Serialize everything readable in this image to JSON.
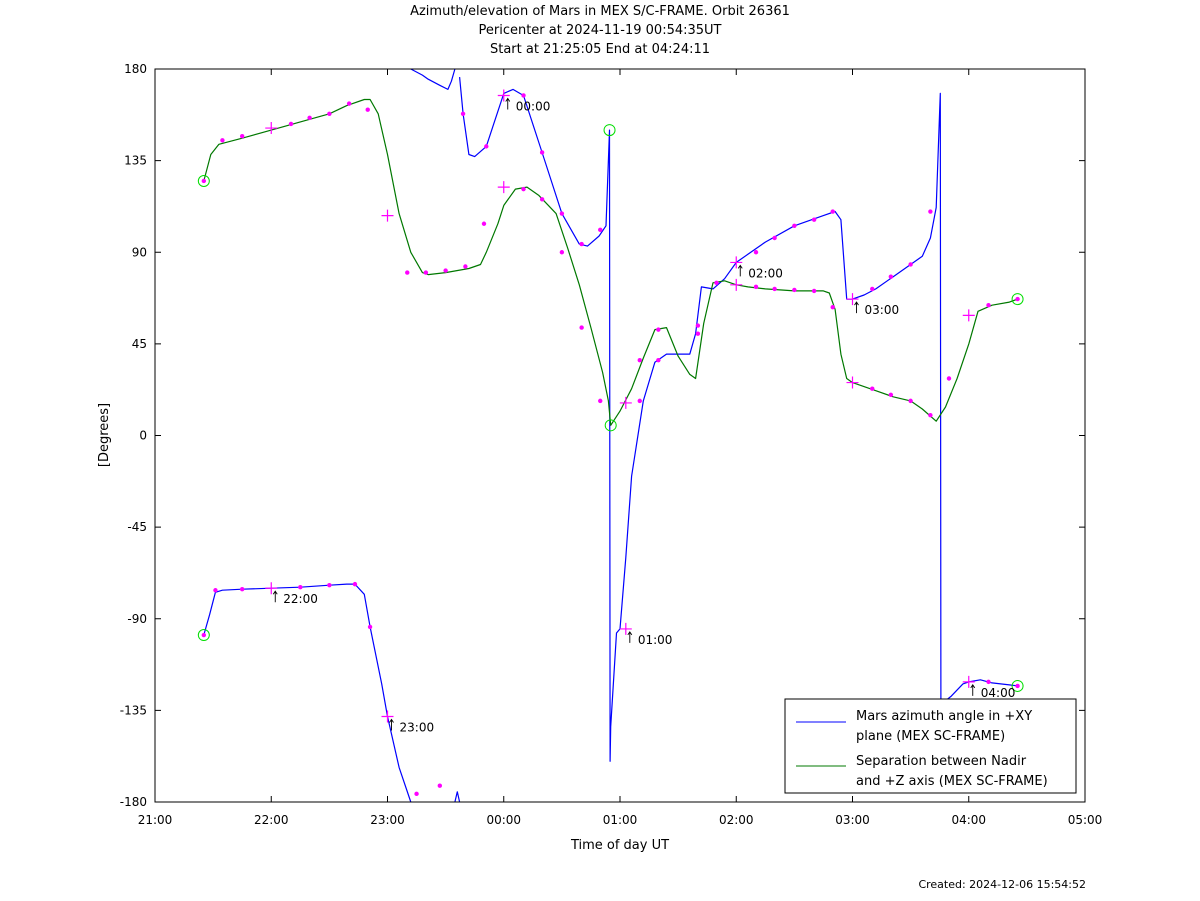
{
  "page": {
    "title_lines": [
      "Azimuth/elevation of Mars in MEX S/C-FRAME.  Orbit 26361",
      "Pericenter at 2024-11-19 00:54:35UT",
      "Start at 21:25:05 End at 04:24:11"
    ],
    "created": "Created: 2024-12-06 15:54:52"
  },
  "chart_data": {
    "type": "line",
    "xlabel": "Time of day UT",
    "ylabel": "[Degrees]",
    "xlim": [
      0,
      8
    ],
    "ylim": [
      -180,
      180
    ],
    "x_ticks": [
      "21:00",
      "22:00",
      "23:00",
      "00:00",
      "01:00",
      "02:00",
      "03:00",
      "04:00",
      "05:00"
    ],
    "y_ticks": [
      180,
      135,
      90,
      45,
      0,
      -45,
      -90,
      -135,
      -180
    ],
    "grid": false,
    "legend_position": "bottom-right",
    "series": [
      {
        "name": "Mars azimuth angle in +XY plane (MEX SC-FRAME)",
        "legend_lines": [
          "Mars azimuth angle in +XY",
          "plane (MEX SC-FRAME)"
        ],
        "color": "#0000ff",
        "segments": [
          [
            [
              0.42,
              -98
            ],
            [
              0.47,
              -88
            ],
            [
              0.52,
              -77
            ],
            [
              0.58,
              -76
            ],
            [
              0.75,
              -75.5
            ],
            [
              1.0,
              -75
            ],
            [
              1.25,
              -74.5
            ],
            [
              1.5,
              -73.5
            ],
            [
              1.65,
              -73
            ],
            [
              1.72,
              -73
            ],
            [
              1.8,
              -78
            ],
            [
              1.85,
              -94
            ],
            [
              1.95,
              -122
            ],
            [
              2.0,
              -138
            ],
            [
              2.1,
              -163
            ],
            [
              2.2,
              -180
            ]
          ],
          [
            [
              2.2,
              180
            ],
            [
              2.3,
              177
            ],
            [
              2.35,
              175
            ],
            [
              2.45,
              172
            ],
            [
              2.52,
              170
            ],
            [
              2.55,
              174
            ],
            [
              2.58,
              180
            ]
          ],
          [
            [
              2.58,
              -180
            ],
            [
              2.6,
              -175
            ],
            [
              2.62,
              -180
            ]
          ],
          [
            [
              2.62,
              176
            ],
            [
              2.65,
              158
            ],
            [
              2.7,
              138
            ],
            [
              2.75,
              137
            ],
            [
              2.85,
              142
            ],
            [
              3.0,
              168
            ],
            [
              3.08,
              170
            ],
            [
              3.17,
              167
            ],
            [
              3.33,
              139
            ],
            [
              3.5,
              109
            ],
            [
              3.65,
              94
            ],
            [
              3.72,
              93
            ],
            [
              3.82,
              98
            ],
            [
              3.88,
              103
            ],
            [
              3.91,
              150
            ],
            [
              3.915,
              -160
            ],
            [
              3.92,
              -143
            ],
            [
              3.97,
              -97
            ],
            [
              4.0,
              -95
            ],
            [
              4.05,
              -60
            ],
            [
              4.1,
              -20
            ],
            [
              4.2,
              17
            ],
            [
              4.3,
              36
            ],
            [
              4.4,
              40
            ],
            [
              4.5,
              40
            ],
            [
              4.6,
              40
            ],
            [
              4.65,
              50
            ],
            [
              4.7,
              73
            ],
            [
              4.8,
              72
            ],
            [
              4.9,
              77
            ],
            [
              5.0,
              85
            ],
            [
              5.1,
              89
            ],
            [
              5.25,
              95
            ],
            [
              5.5,
              103
            ],
            [
              5.75,
              108
            ],
            [
              5.85,
              110
            ],
            [
              5.9,
              106
            ],
            [
              5.95,
              67
            ],
            [
              6.0,
              67
            ],
            [
              6.1,
              69
            ],
            [
              6.2,
              72
            ],
            [
              6.35,
              78
            ],
            [
              6.5,
              84
            ],
            [
              6.6,
              88
            ],
            [
              6.67,
              97
            ],
            [
              6.72,
              112
            ],
            [
              6.75,
              160
            ],
            [
              6.755,
              168
            ],
            [
              6.76,
              -132
            ]
          ],
          [
            [
              6.76,
              -132
            ],
            [
              6.85,
              -128
            ],
            [
              6.95,
              -122
            ],
            [
              7.0,
              -121
            ],
            [
              7.1,
              -120
            ],
            [
              7.2,
              -121.5
            ],
            [
              7.35,
              -122.5
            ],
            [
              7.42,
              -123
            ]
          ]
        ]
      },
      {
        "name": "Separation between Nadir and +Z axis (MEX SC-FRAME)",
        "legend_lines": [
          "Separation between Nadir",
          "and +Z axis (MEX SC-FRAME)"
        ],
        "color": "#007800",
        "segments": [
          [
            [
              0.42,
              125
            ],
            [
              0.48,
              138
            ],
            [
              0.55,
              143
            ],
            [
              0.75,
              146
            ],
            [
              1.0,
              150
            ],
            [
              1.25,
              154
            ],
            [
              1.5,
              158
            ],
            [
              1.65,
              162
            ],
            [
              1.8,
              165
            ],
            [
              1.85,
              165
            ],
            [
              1.92,
              158
            ],
            [
              2.0,
              138
            ],
            [
              2.1,
              109
            ],
            [
              2.2,
              90
            ],
            [
              2.3,
              80
            ],
            [
              2.35,
              79
            ],
            [
              2.5,
              80
            ],
            [
              2.7,
              82
            ],
            [
              2.8,
              84
            ],
            [
              2.85,
              90
            ],
            [
              2.95,
              104
            ],
            [
              3.0,
              113
            ],
            [
              3.1,
              121
            ],
            [
              3.2,
              122
            ],
            [
              3.3,
              118
            ],
            [
              3.45,
              109
            ],
            [
              3.55,
              92
            ],
            [
              3.65,
              74
            ],
            [
              3.75,
              53
            ],
            [
              3.85,
              31
            ],
            [
              3.9,
              17
            ],
            [
              3.92,
              5
            ],
            [
              4.0,
              12
            ],
            [
              4.1,
              23
            ],
            [
              4.2,
              38
            ],
            [
              4.3,
              52
            ],
            [
              4.4,
              53
            ],
            [
              4.5,
              39
            ],
            [
              4.6,
              30
            ],
            [
              4.65,
              28
            ],
            [
              4.72,
              55
            ],
            [
              4.8,
              75
            ],
            [
              4.9,
              76
            ],
            [
              5.0,
              74
            ],
            [
              5.1,
              73
            ],
            [
              5.25,
              72
            ],
            [
              5.5,
              71
            ],
            [
              5.75,
              71
            ],
            [
              5.8,
              70
            ],
            [
              5.85,
              62
            ],
            [
              5.9,
              40
            ],
            [
              5.95,
              28
            ],
            [
              6.0,
              26
            ],
            [
              6.2,
              22
            ],
            [
              6.35,
              19
            ],
            [
              6.5,
              17
            ],
            [
              6.6,
              13
            ],
            [
              6.72,
              7
            ],
            [
              6.8,
              14
            ],
            [
              6.9,
              28
            ],
            [
              7.0,
              45
            ],
            [
              7.08,
              61
            ],
            [
              7.2,
              64
            ],
            [
              7.35,
              65.5
            ],
            [
              7.42,
              67
            ]
          ]
        ]
      }
    ],
    "markers": {
      "color": "#ff00ff",
      "circle_color": "#00dd00",
      "dots": [
        [
          0.42,
          -98
        ],
        [
          0.52,
          -76
        ],
        [
          0.75,
          -75.5
        ],
        [
          1.25,
          -74.5
        ],
        [
          1.5,
          -73.5
        ],
        [
          1.72,
          -73
        ],
        [
          1.85,
          -94
        ],
        [
          2.25,
          -176
        ],
        [
          2.45,
          -172
        ],
        [
          2.65,
          158
        ],
        [
          2.85,
          142
        ],
        [
          3.17,
          167
        ],
        [
          3.33,
          139
        ],
        [
          3.5,
          109
        ],
        [
          3.67,
          94
        ],
        [
          3.83,
          101
        ],
        [
          4.17,
          17
        ],
        [
          4.33,
          37
        ],
        [
          4.67,
          50
        ],
        [
          5.17,
          90
        ],
        [
          5.33,
          97
        ],
        [
          5.5,
          103
        ],
        [
          5.67,
          106
        ],
        [
          5.83,
          110
        ],
        [
          6.17,
          72
        ],
        [
          6.33,
          78
        ],
        [
          6.5,
          84
        ],
        [
          6.67,
          110
        ],
        [
          7.17,
          -121
        ],
        [
          7.42,
          -123
        ],
        [
          0.42,
          125
        ],
        [
          0.58,
          145
        ],
        [
          0.75,
          147
        ],
        [
          1.17,
          153
        ],
        [
          1.33,
          156
        ],
        [
          1.5,
          158
        ],
        [
          1.67,
          163
        ],
        [
          1.83,
          160
        ],
        [
          2.17,
          80
        ],
        [
          2.33,
          80
        ],
        [
          2.5,
          81
        ],
        [
          2.67,
          83
        ],
        [
          2.83,
          104
        ],
        [
          3.17,
          121
        ],
        [
          3.33,
          116
        ],
        [
          3.5,
          90
        ],
        [
          3.67,
          53
        ],
        [
          3.83,
          17
        ],
        [
          4.17,
          37
        ],
        [
          4.33,
          52
        ],
        [
          4.67,
          54
        ],
        [
          4.83,
          75
        ],
        [
          5.17,
          73
        ],
        [
          5.33,
          72
        ],
        [
          5.5,
          71.5
        ],
        [
          5.67,
          71
        ],
        [
          5.83,
          63
        ],
        [
          6.17,
          23
        ],
        [
          6.33,
          20
        ],
        [
          6.5,
          17
        ],
        [
          6.67,
          10
        ],
        [
          6.83,
          28
        ],
        [
          7.17,
          64
        ],
        [
          7.42,
          67
        ]
      ],
      "crosses": [
        [
          1.0,
          -75
        ],
        [
          2.0,
          -138
        ],
        [
          3.0,
          167
        ],
        [
          4.05,
          -95
        ],
        [
          5.0,
          85
        ],
        [
          6.0,
          67
        ],
        [
          7.0,
          -121
        ],
        [
          1.0,
          151
        ],
        [
          2.0,
          108
        ],
        [
          3.0,
          122
        ],
        [
          4.05,
          16
        ],
        [
          5.0,
          74
        ],
        [
          6.0,
          26
        ],
        [
          7.0,
          59
        ]
      ],
      "circles": [
        [
          0.42,
          -98
        ],
        [
          0.42,
          125
        ],
        [
          3.91,
          150
        ],
        [
          3.92,
          5
        ],
        [
          7.42,
          -123
        ],
        [
          7.42,
          67
        ]
      ],
      "time_labels": [
        {
          "x": 1.0,
          "y": -75,
          "text": "22:00"
        },
        {
          "x": 2.0,
          "y": -138,
          "text": "23:00"
        },
        {
          "x": 3.0,
          "y": 167,
          "text": "00:00"
        },
        {
          "x": 4.05,
          "y": -95,
          "text": "01:00"
        },
        {
          "x": 5.0,
          "y": 85,
          "text": "02:00"
        },
        {
          "x": 6.0,
          "y": 67,
          "text": "03:00"
        },
        {
          "x": 7.0,
          "y": -121,
          "text": "04:00"
        }
      ]
    }
  }
}
